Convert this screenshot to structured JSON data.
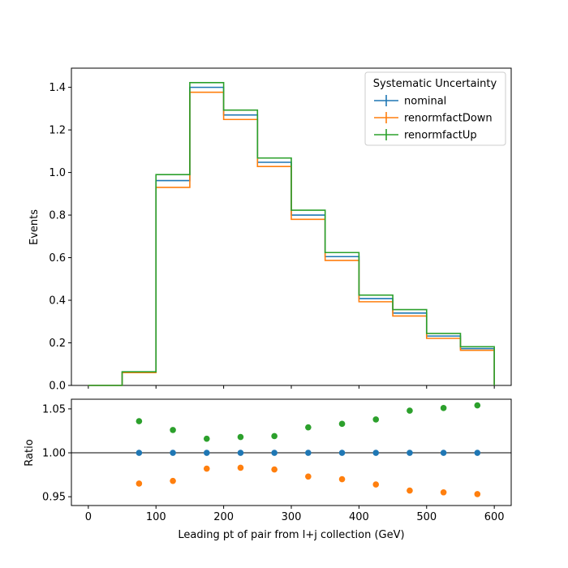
{
  "chart_data": [
    {
      "type": "line",
      "panel": "main",
      "ylabel": "Events",
      "xlim": [
        -25,
        625
      ],
      "ylim": [
        0,
        1.49
      ],
      "x_edges": [
        0,
        50,
        100,
        150,
        200,
        250,
        300,
        350,
        400,
        450,
        500,
        550,
        600
      ],
      "y_ticks": [
        "0.0",
        "0.2",
        "0.4",
        "0.6",
        "0.8",
        "1.0",
        "1.2",
        "1.4"
      ],
      "legend": {
        "title": "Systematic Uncertainty",
        "placement": "top-right"
      },
      "series": [
        {
          "name": "nominal",
          "color": "#1f77b4",
          "values": [
            0.0,
            0.062,
            0.962,
            1.4,
            1.27,
            1.048,
            0.8,
            0.605,
            0.408,
            0.34,
            0.232,
            0.173
          ]
        },
        {
          "name": "renormfactDown",
          "color": "#ff7f0e",
          "values": [
            0.0,
            0.06,
            0.93,
            1.377,
            1.249,
            1.028,
            0.78,
            0.587,
            0.393,
            0.326,
            0.221,
            0.165
          ]
        },
        {
          "name": "renormfactUp",
          "color": "#2ca02c",
          "values": [
            0.0,
            0.064,
            0.99,
            1.422,
            1.293,
            1.068,
            0.823,
            0.624,
            0.424,
            0.356,
            0.244,
            0.182
          ]
        }
      ]
    },
    {
      "type": "scatter",
      "panel": "ratio",
      "xlabel": "Leading pt of pair from l+j collection (GeV)",
      "ylabel": "Ratio",
      "xlim": [
        -25,
        625
      ],
      "ylim": [
        0.94,
        1.061
      ],
      "x_ticks": [
        "0",
        "100",
        "200",
        "300",
        "400",
        "500",
        "600"
      ],
      "y_ticks": [
        "0.95",
        "1.00",
        "1.05"
      ],
      "reference_line": 1.0,
      "x": [
        75,
        125,
        175,
        225,
        275,
        325,
        375,
        425,
        475,
        525,
        575
      ],
      "series": [
        {
          "name": "nominal",
          "color": "#1f77b4",
          "values": [
            1.0,
            1.0,
            1.0,
            1.0,
            1.0,
            1.0,
            1.0,
            1.0,
            1.0,
            1.0,
            1.0
          ]
        },
        {
          "name": "renormfactDown",
          "color": "#ff7f0e",
          "values": [
            0.965,
            0.968,
            0.982,
            0.983,
            0.981,
            0.973,
            0.97,
            0.964,
            0.957,
            0.955,
            0.953
          ]
        },
        {
          "name": "renormfactUp",
          "color": "#2ca02c",
          "values": [
            1.036,
            1.026,
            1.016,
            1.018,
            1.019,
            1.029,
            1.033,
            1.038,
            1.048,
            1.051,
            1.054
          ]
        }
      ]
    }
  ]
}
